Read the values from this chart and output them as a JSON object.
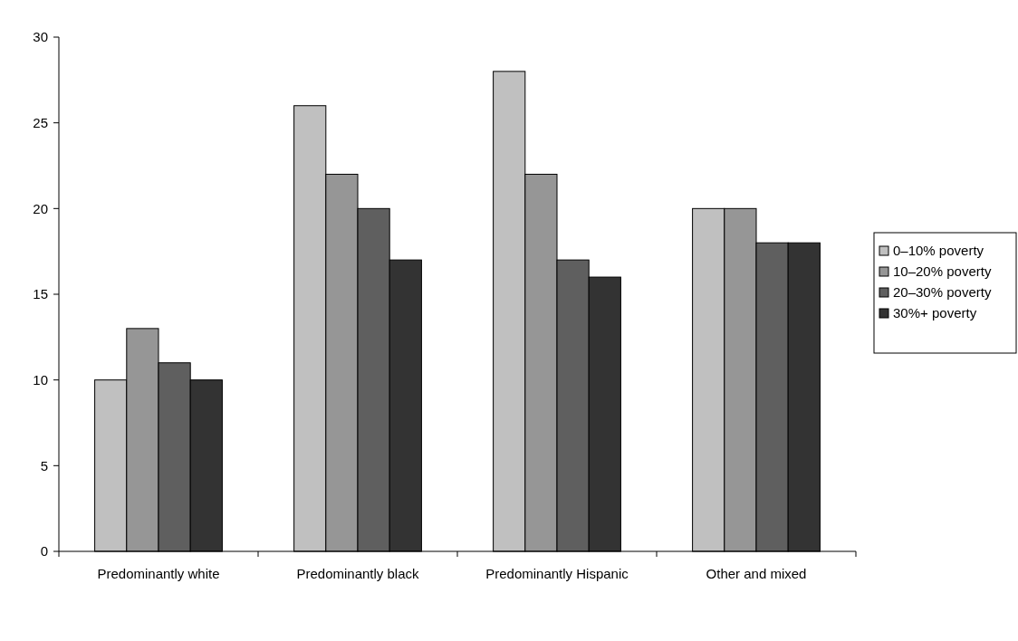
{
  "chart_data": {
    "type": "bar",
    "categories": [
      "Predominantly white",
      "Predominantly black",
      "Predominantly Hispanic",
      "Other and mixed"
    ],
    "series": [
      {
        "name": "0–10% poverty",
        "color": "#c0c0c0",
        "values": [
          10,
          26,
          28,
          20
        ]
      },
      {
        "name": "10–20% poverty",
        "color": "#969696",
        "values": [
          13,
          22,
          22,
          20
        ]
      },
      {
        "name": "20–30% poverty",
        "color": "#5f5f5f",
        "values": [
          11,
          20,
          17,
          18
        ]
      },
      {
        "name": "30%+ poverty",
        "color": "#333333",
        "values": [
          10,
          17,
          16,
          18
        ]
      }
    ],
    "ylim": [
      0,
      30
    ],
    "yticks": [
      0,
      5,
      10,
      15,
      20,
      25,
      30
    ],
    "grid": false,
    "legend": "right"
  }
}
